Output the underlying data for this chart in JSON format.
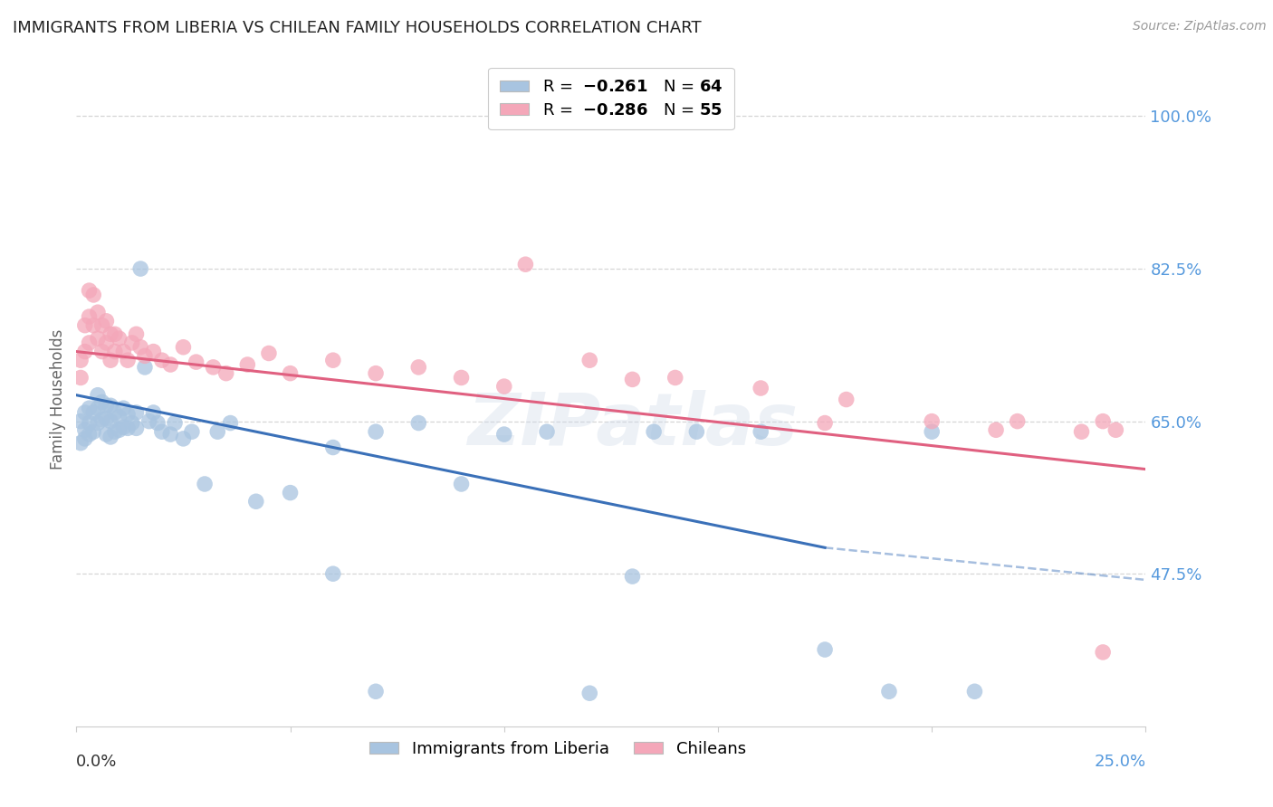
{
  "title": "IMMIGRANTS FROM LIBERIA VS CHILEAN FAMILY HOUSEHOLDS CORRELATION CHART",
  "source": "Source: ZipAtlas.com",
  "ylabel": "Family Households",
  "ytick_labels": [
    "100.0%",
    "82.5%",
    "65.0%",
    "47.5%"
  ],
  "ytick_values": [
    1.0,
    0.825,
    0.65,
    0.475
  ],
  "xlim": [
    0.0,
    0.25
  ],
  "ylim": [
    0.3,
    1.05
  ],
  "liberia_color": "#a8c4e0",
  "chilean_color": "#f4a7b9",
  "liberia_line_color": "#3a70b8",
  "chilean_line_color": "#e06080",
  "background_color": "#ffffff",
  "grid_color": "#cccccc",
  "liberia_x": [
    0.001,
    0.001,
    0.002,
    0.002,
    0.002,
    0.003,
    0.003,
    0.003,
    0.004,
    0.004,
    0.005,
    0.005,
    0.005,
    0.006,
    0.006,
    0.007,
    0.007,
    0.007,
    0.008,
    0.008,
    0.008,
    0.009,
    0.009,
    0.01,
    0.01,
    0.011,
    0.011,
    0.012,
    0.012,
    0.013,
    0.014,
    0.014,
    0.015,
    0.016,
    0.017,
    0.018,
    0.019,
    0.02,
    0.022,
    0.023,
    0.025,
    0.027,
    0.03,
    0.033,
    0.036,
    0.042,
    0.05,
    0.06,
    0.07,
    0.08,
    0.09,
    0.1,
    0.11,
    0.13,
    0.145,
    0.16,
    0.175,
    0.19,
    0.2,
    0.21,
    0.135,
    0.06,
    0.07,
    0.12
  ],
  "liberia_y": [
    0.65,
    0.625,
    0.66,
    0.64,
    0.63,
    0.665,
    0.648,
    0.635,
    0.66,
    0.638,
    0.68,
    0.665,
    0.648,
    0.672,
    0.652,
    0.668,
    0.653,
    0.635,
    0.668,
    0.65,
    0.632,
    0.66,
    0.638,
    0.655,
    0.64,
    0.665,
    0.643,
    0.658,
    0.642,
    0.648,
    0.66,
    0.642,
    0.825,
    0.712,
    0.65,
    0.66,
    0.648,
    0.638,
    0.635,
    0.648,
    0.63,
    0.638,
    0.578,
    0.638,
    0.648,
    0.558,
    0.568,
    0.62,
    0.638,
    0.648,
    0.578,
    0.635,
    0.638,
    0.472,
    0.638,
    0.638,
    0.388,
    0.34,
    0.638,
    0.34,
    0.638,
    0.475,
    0.34,
    0.338
  ],
  "chilean_x": [
    0.001,
    0.001,
    0.002,
    0.002,
    0.003,
    0.003,
    0.003,
    0.004,
    0.004,
    0.005,
    0.005,
    0.006,
    0.006,
    0.007,
    0.007,
    0.008,
    0.008,
    0.009,
    0.009,
    0.01,
    0.011,
    0.012,
    0.013,
    0.014,
    0.015,
    0.016,
    0.018,
    0.02,
    0.022,
    0.025,
    0.028,
    0.032,
    0.035,
    0.04,
    0.045,
    0.05,
    0.06,
    0.07,
    0.08,
    0.09,
    0.1,
    0.12,
    0.14,
    0.16,
    0.18,
    0.2,
    0.215,
    0.22,
    0.235,
    0.24,
    0.105,
    0.13,
    0.175,
    0.24,
    0.243
  ],
  "chilean_y": [
    0.72,
    0.7,
    0.76,
    0.73,
    0.8,
    0.77,
    0.74,
    0.795,
    0.76,
    0.775,
    0.745,
    0.76,
    0.73,
    0.765,
    0.74,
    0.75,
    0.72,
    0.75,
    0.73,
    0.745,
    0.73,
    0.72,
    0.74,
    0.75,
    0.735,
    0.725,
    0.73,
    0.72,
    0.715,
    0.735,
    0.718,
    0.712,
    0.705,
    0.715,
    0.728,
    0.705,
    0.72,
    0.705,
    0.712,
    0.7,
    0.69,
    0.72,
    0.7,
    0.688,
    0.675,
    0.65,
    0.64,
    0.65,
    0.638,
    0.385,
    0.83,
    0.698,
    0.648,
    0.65,
    0.64
  ],
  "lib_line_x0": 0.0,
  "lib_line_y0": 0.68,
  "lib_line_x1": 0.175,
  "lib_line_y1": 0.505,
  "lib_line_dash_x1": 0.25,
  "lib_line_dash_y1": 0.468,
  "chi_line_x0": 0.0,
  "chi_line_y0": 0.73,
  "chi_line_x1": 0.25,
  "chi_line_y1": 0.595
}
